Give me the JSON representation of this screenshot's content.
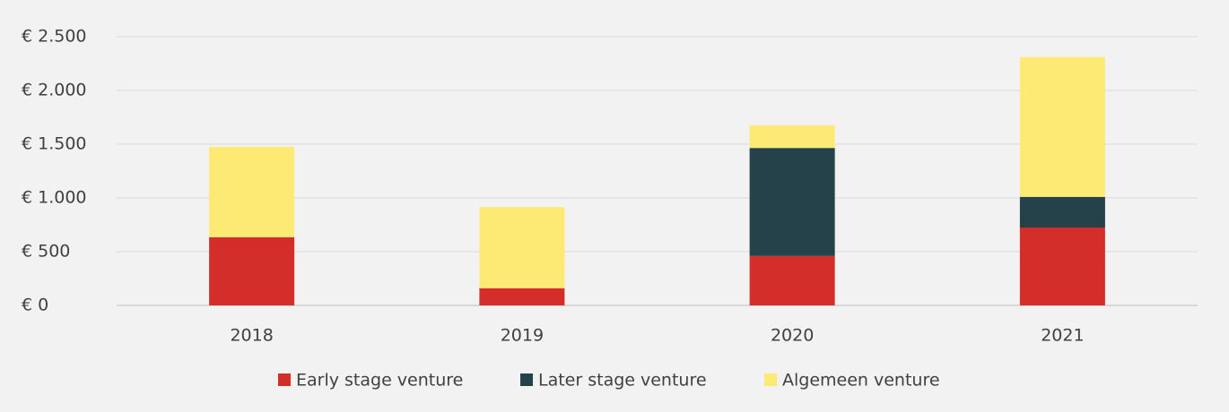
{
  "chart_data": {
    "type": "stacked_bar",
    "categories": [
      "2018",
      "2019",
      "2020",
      "2021"
    ],
    "series": [
      {
        "name": "Early stage venture",
        "color": "#d42e2a",
        "values": [
          635,
          160,
          460,
          725
        ]
      },
      {
        "name": "Later stage venture",
        "color": "#25414a",
        "values": [
          0,
          0,
          1005,
          285
        ]
      },
      {
        "name": "Algemeen venture",
        "color": "#fdea74",
        "values": [
          840,
          755,
          210,
          1300
        ]
      }
    ],
    "ylim": [
      0,
      2500
    ],
    "yticks": [
      {
        "value": 0,
        "label": "€ 0"
      },
      {
        "value": 500,
        "label": "€ 500"
      },
      {
        "value": 1000,
        "label": "€ 1.000"
      },
      {
        "value": 1500,
        "label": "€ 1.500"
      },
      {
        "value": 2000,
        "label": "€ 2.000"
      },
      {
        "value": 2500,
        "label": "€ 2.500"
      }
    ],
    "grid": true,
    "legend": "bottom"
  }
}
